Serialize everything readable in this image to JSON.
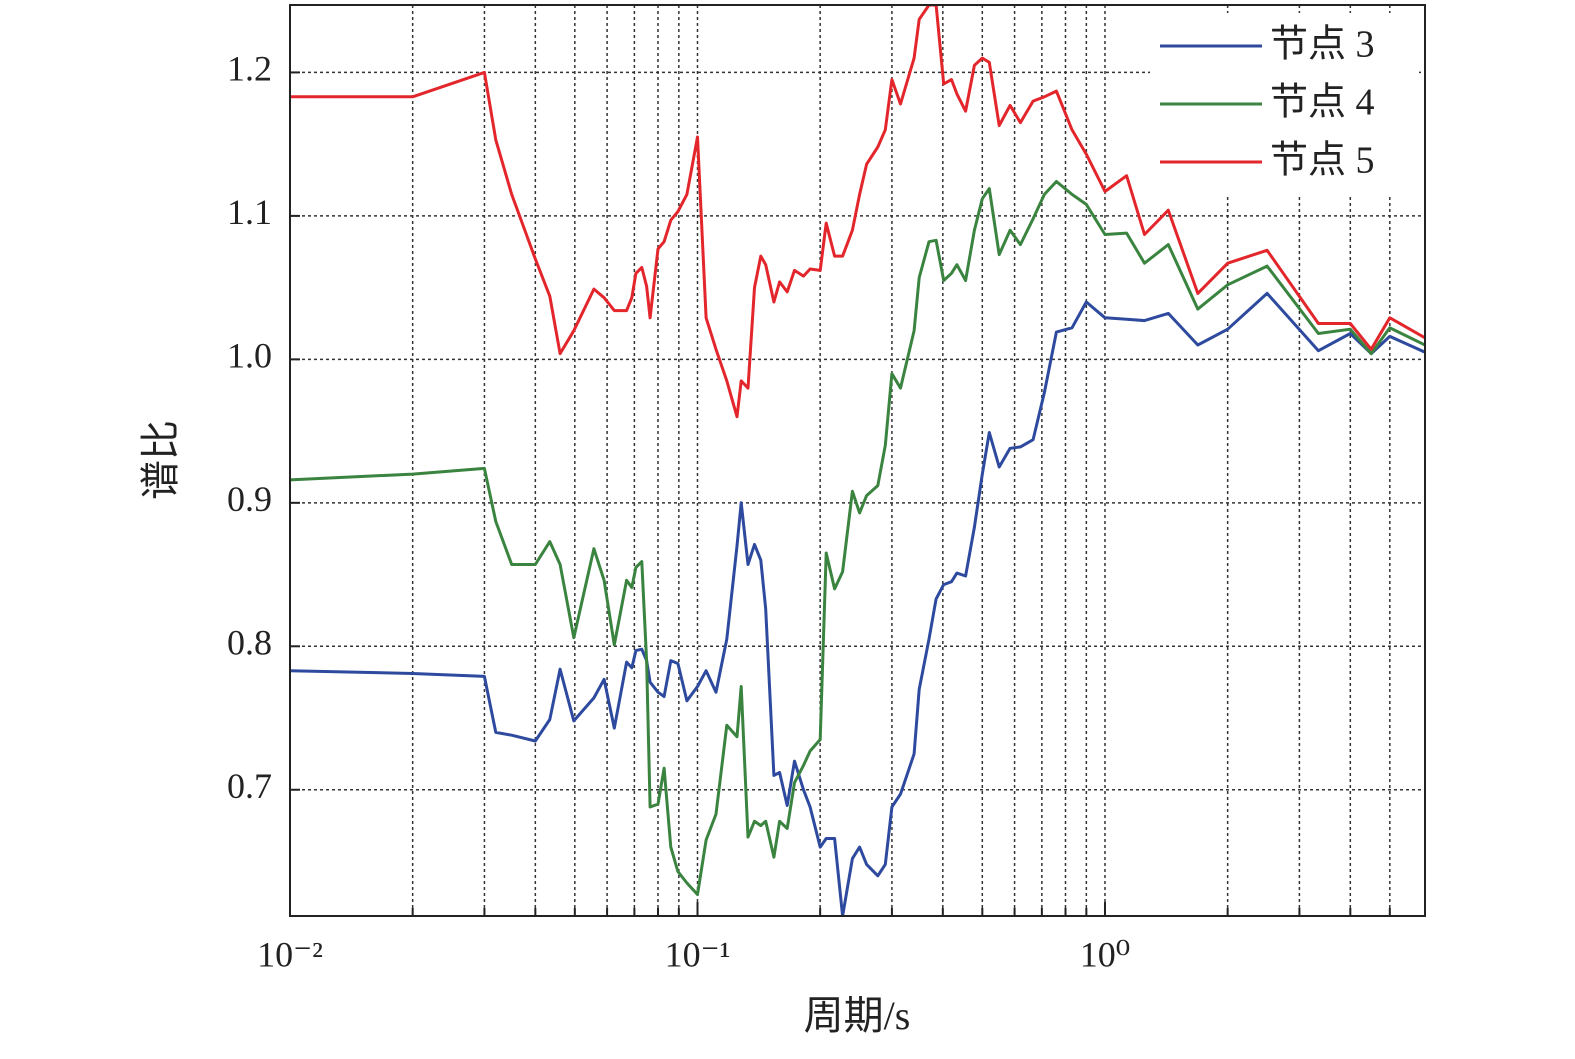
{
  "chart_data": {
    "type": "line",
    "xlabel": "周期/s",
    "ylabel": "谱比",
    "xscale": "log",
    "xlim": [
      0.01,
      6.1
    ],
    "ylim": [
      0.612,
      1.247
    ],
    "xticks": [
      {
        "value": 0.01,
        "label": "10⁻²"
      },
      {
        "value": 0.1,
        "label": "10⁻¹"
      },
      {
        "value": 1,
        "label": "10⁰"
      }
    ],
    "xminorticks": [
      0.02,
      0.03,
      0.04,
      0.05,
      0.06,
      0.07,
      0.08,
      0.09,
      0.2,
      0.3,
      0.4,
      0.5,
      0.6,
      0.7,
      0.8,
      0.9,
      2,
      3,
      4,
      5
    ],
    "yticks": [
      0.7,
      0.8,
      0.9,
      {
        "value": 1,
        "label": "1.0"
      },
      1.1,
      1.2
    ],
    "grid": true,
    "legend": "upper right",
    "x": [
      0.01,
      0.02,
      0.03,
      0.032,
      0.035,
      0.04,
      0.0434,
      0.046,
      0.0497,
      0.0557,
      0.059,
      0.0625,
      0.067,
      0.069,
      0.0706,
      0.073,
      0.075,
      0.0765,
      0.08,
      0.0828,
      0.086,
      0.0895,
      0.0942,
      0.1,
      0.105,
      0.111,
      0.118,
      0.125,
      0.128,
      0.133,
      0.138,
      0.143,
      0.147,
      0.154,
      0.159,
      0.166,
      0.173,
      0.182,
      0.189,
      0.2,
      0.207,
      0.217,
      0.227,
      0.24,
      0.25,
      0.26,
      0.277,
      0.289,
      0.3,
      0.315,
      0.34,
      0.35,
      0.37,
      0.385,
      0.402,
      0.42,
      0.433,
      0.455,
      0.478,
      0.5,
      0.52,
      0.55,
      0.585,
      0.62,
      0.666,
      0.71,
      0.76,
      0.83,
      0.9,
      1.0,
      1.13,
      1.25,
      1.43,
      1.69,
      2.0,
      2.5,
      3.34,
      4.0,
      4.5,
      5.0,
      6.1
    ],
    "series": [
      {
        "name": "节点 3",
        "color": "#2e4a9e",
        "values": [
          0.783,
          0.781,
          0.779,
          0.74,
          0.738,
          0.734,
          0.749,
          0.784,
          0.748,
          0.764,
          0.777,
          0.743,
          0.789,
          0.785,
          0.797,
          0.798,
          0.79,
          0.775,
          0.768,
          0.765,
          0.79,
          0.788,
          0.762,
          0.772,
          0.783,
          0.768,
          0.805,
          0.87,
          0.9,
          0.857,
          0.871,
          0.86,
          0.826,
          0.71,
          0.712,
          0.689,
          0.72,
          0.7,
          0.688,
          0.66,
          0.666,
          0.666,
          0.612,
          0.652,
          0.66,
          0.648,
          0.64,
          0.648,
          0.688,
          0.697,
          0.725,
          0.77,
          0.805,
          0.833,
          0.843,
          0.845,
          0.851,
          0.849,
          0.883,
          0.92,
          0.949,
          0.925,
          0.938,
          0.939,
          0.944,
          0.977,
          1.019,
          1.022,
          1.04,
          1.029,
          1.028,
          1.027,
          1.032,
          1.01,
          1.021,
          1.046,
          1.006,
          1.018,
          1.004,
          1.016,
          1.005
        ]
      },
      {
        "name": "节点 4",
        "color": "#3a8440",
        "values": [
          0.916,
          0.92,
          0.924,
          0.887,
          0.857,
          0.857,
          0.873,
          0.857,
          0.806,
          0.868,
          0.846,
          0.801,
          0.846,
          0.841,
          0.855,
          0.859,
          0.79,
          0.688,
          0.69,
          0.715,
          0.66,
          0.643,
          0.635,
          0.627,
          0.665,
          0.683,
          0.745,
          0.737,
          0.772,
          0.667,
          0.678,
          0.675,
          0.678,
          0.653,
          0.678,
          0.673,
          0.705,
          0.717,
          0.727,
          0.735,
          0.865,
          0.84,
          0.852,
          0.908,
          0.893,
          0.905,
          0.912,
          0.94,
          0.99,
          0.98,
          1.02,
          1.057,
          1.082,
          1.083,
          1.055,
          1.06,
          1.066,
          1.055,
          1.09,
          1.112,
          1.119,
          1.073,
          1.09,
          1.08,
          1.098,
          1.115,
          1.124,
          1.115,
          1.108,
          1.087,
          1.088,
          1.067,
          1.08,
          1.035,
          1.052,
          1.065,
          1.018,
          1.021,
          1.004,
          1.022,
          1.01
        ]
      },
      {
        "name": "节点 5",
        "color": "#e3262b",
        "values": [
          1.183,
          1.183,
          1.2,
          1.153,
          1.115,
          1.07,
          1.044,
          1.004,
          1.02,
          1.049,
          1.043,
          1.034,
          1.034,
          1.043,
          1.06,
          1.064,
          1.051,
          1.029,
          1.077,
          1.082,
          1.097,
          1.103,
          1.115,
          1.155,
          1.029,
          1.007,
          0.985,
          0.96,
          0.985,
          0.98,
          1.05,
          1.072,
          1.066,
          1.04,
          1.054,
          1.047,
          1.062,
          1.058,
          1.063,
          1.062,
          1.095,
          1.072,
          1.072,
          1.09,
          1.115,
          1.136,
          1.148,
          1.16,
          1.195,
          1.178,
          1.21,
          1.237,
          1.247,
          1.247,
          1.192,
          1.195,
          1.185,
          1.173,
          1.205,
          1.21,
          1.207,
          1.163,
          1.177,
          1.165,
          1.18,
          1.183,
          1.187,
          1.16,
          1.143,
          1.117,
          1.128,
          1.087,
          1.104,
          1.046,
          1.067,
          1.076,
          1.025,
          1.025,
          1.007,
          1.029,
          1.015
        ]
      }
    ]
  }
}
